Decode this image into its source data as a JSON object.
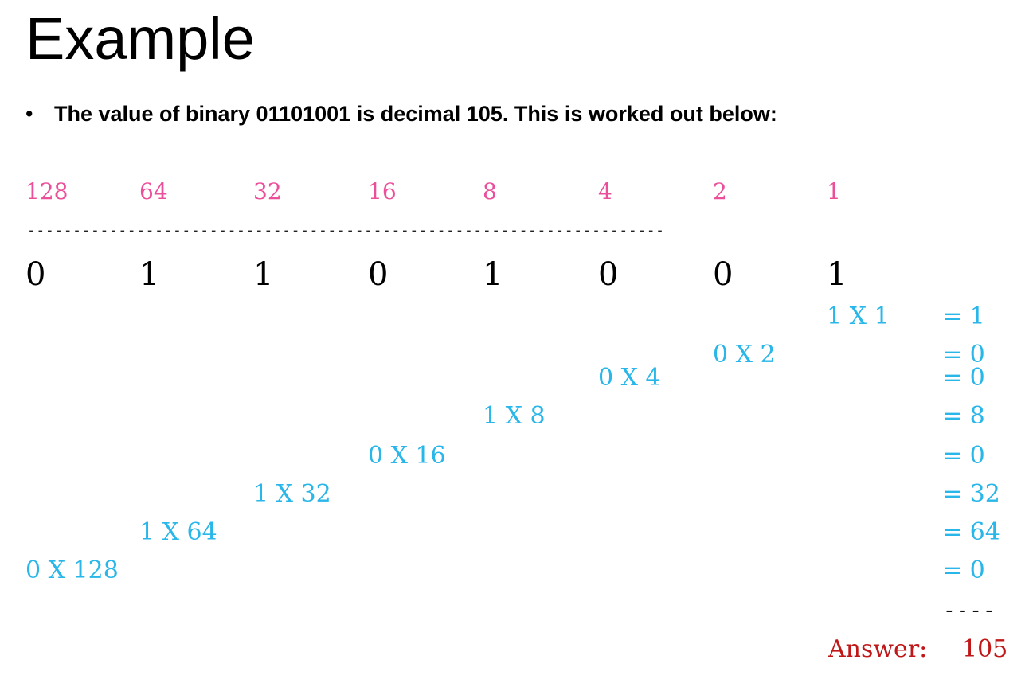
{
  "title": "Example",
  "bullet": {
    "symbol": "•",
    "text": "The value of binary 01101001 is decimal 105. This is worked out below:"
  },
  "place_values": [
    "128",
    "64",
    "32",
    "16",
    "8",
    "4",
    "2",
    "1"
  ],
  "separator": "----------------------------------------------------------------------",
  "binary_digits": [
    "0",
    "1",
    "1",
    "0",
    "1",
    "0",
    "0",
    "1"
  ],
  "working": [
    {
      "expr": "1 X 1",
      "result": "= 1"
    },
    {
      "expr": "0 X 2",
      "result": "= 0"
    },
    {
      "expr": "0 X 4",
      "result": "= 0"
    },
    {
      "expr": "1 X 8",
      "result": "= 8"
    },
    {
      "expr": "0 X 16",
      "result": "= 0"
    },
    {
      "expr": "1 X 32",
      "result": "= 32"
    },
    {
      "expr": "1 X 64",
      "result": "= 64"
    },
    {
      "expr": "0 X 128",
      "result": "= 0"
    }
  ],
  "sum_rule": "----",
  "answer": {
    "label": "Answer:",
    "value": "105"
  },
  "colors": {
    "place_values": "#ec4f9a",
    "working": "#29b6e8",
    "answer": "#c01818"
  }
}
